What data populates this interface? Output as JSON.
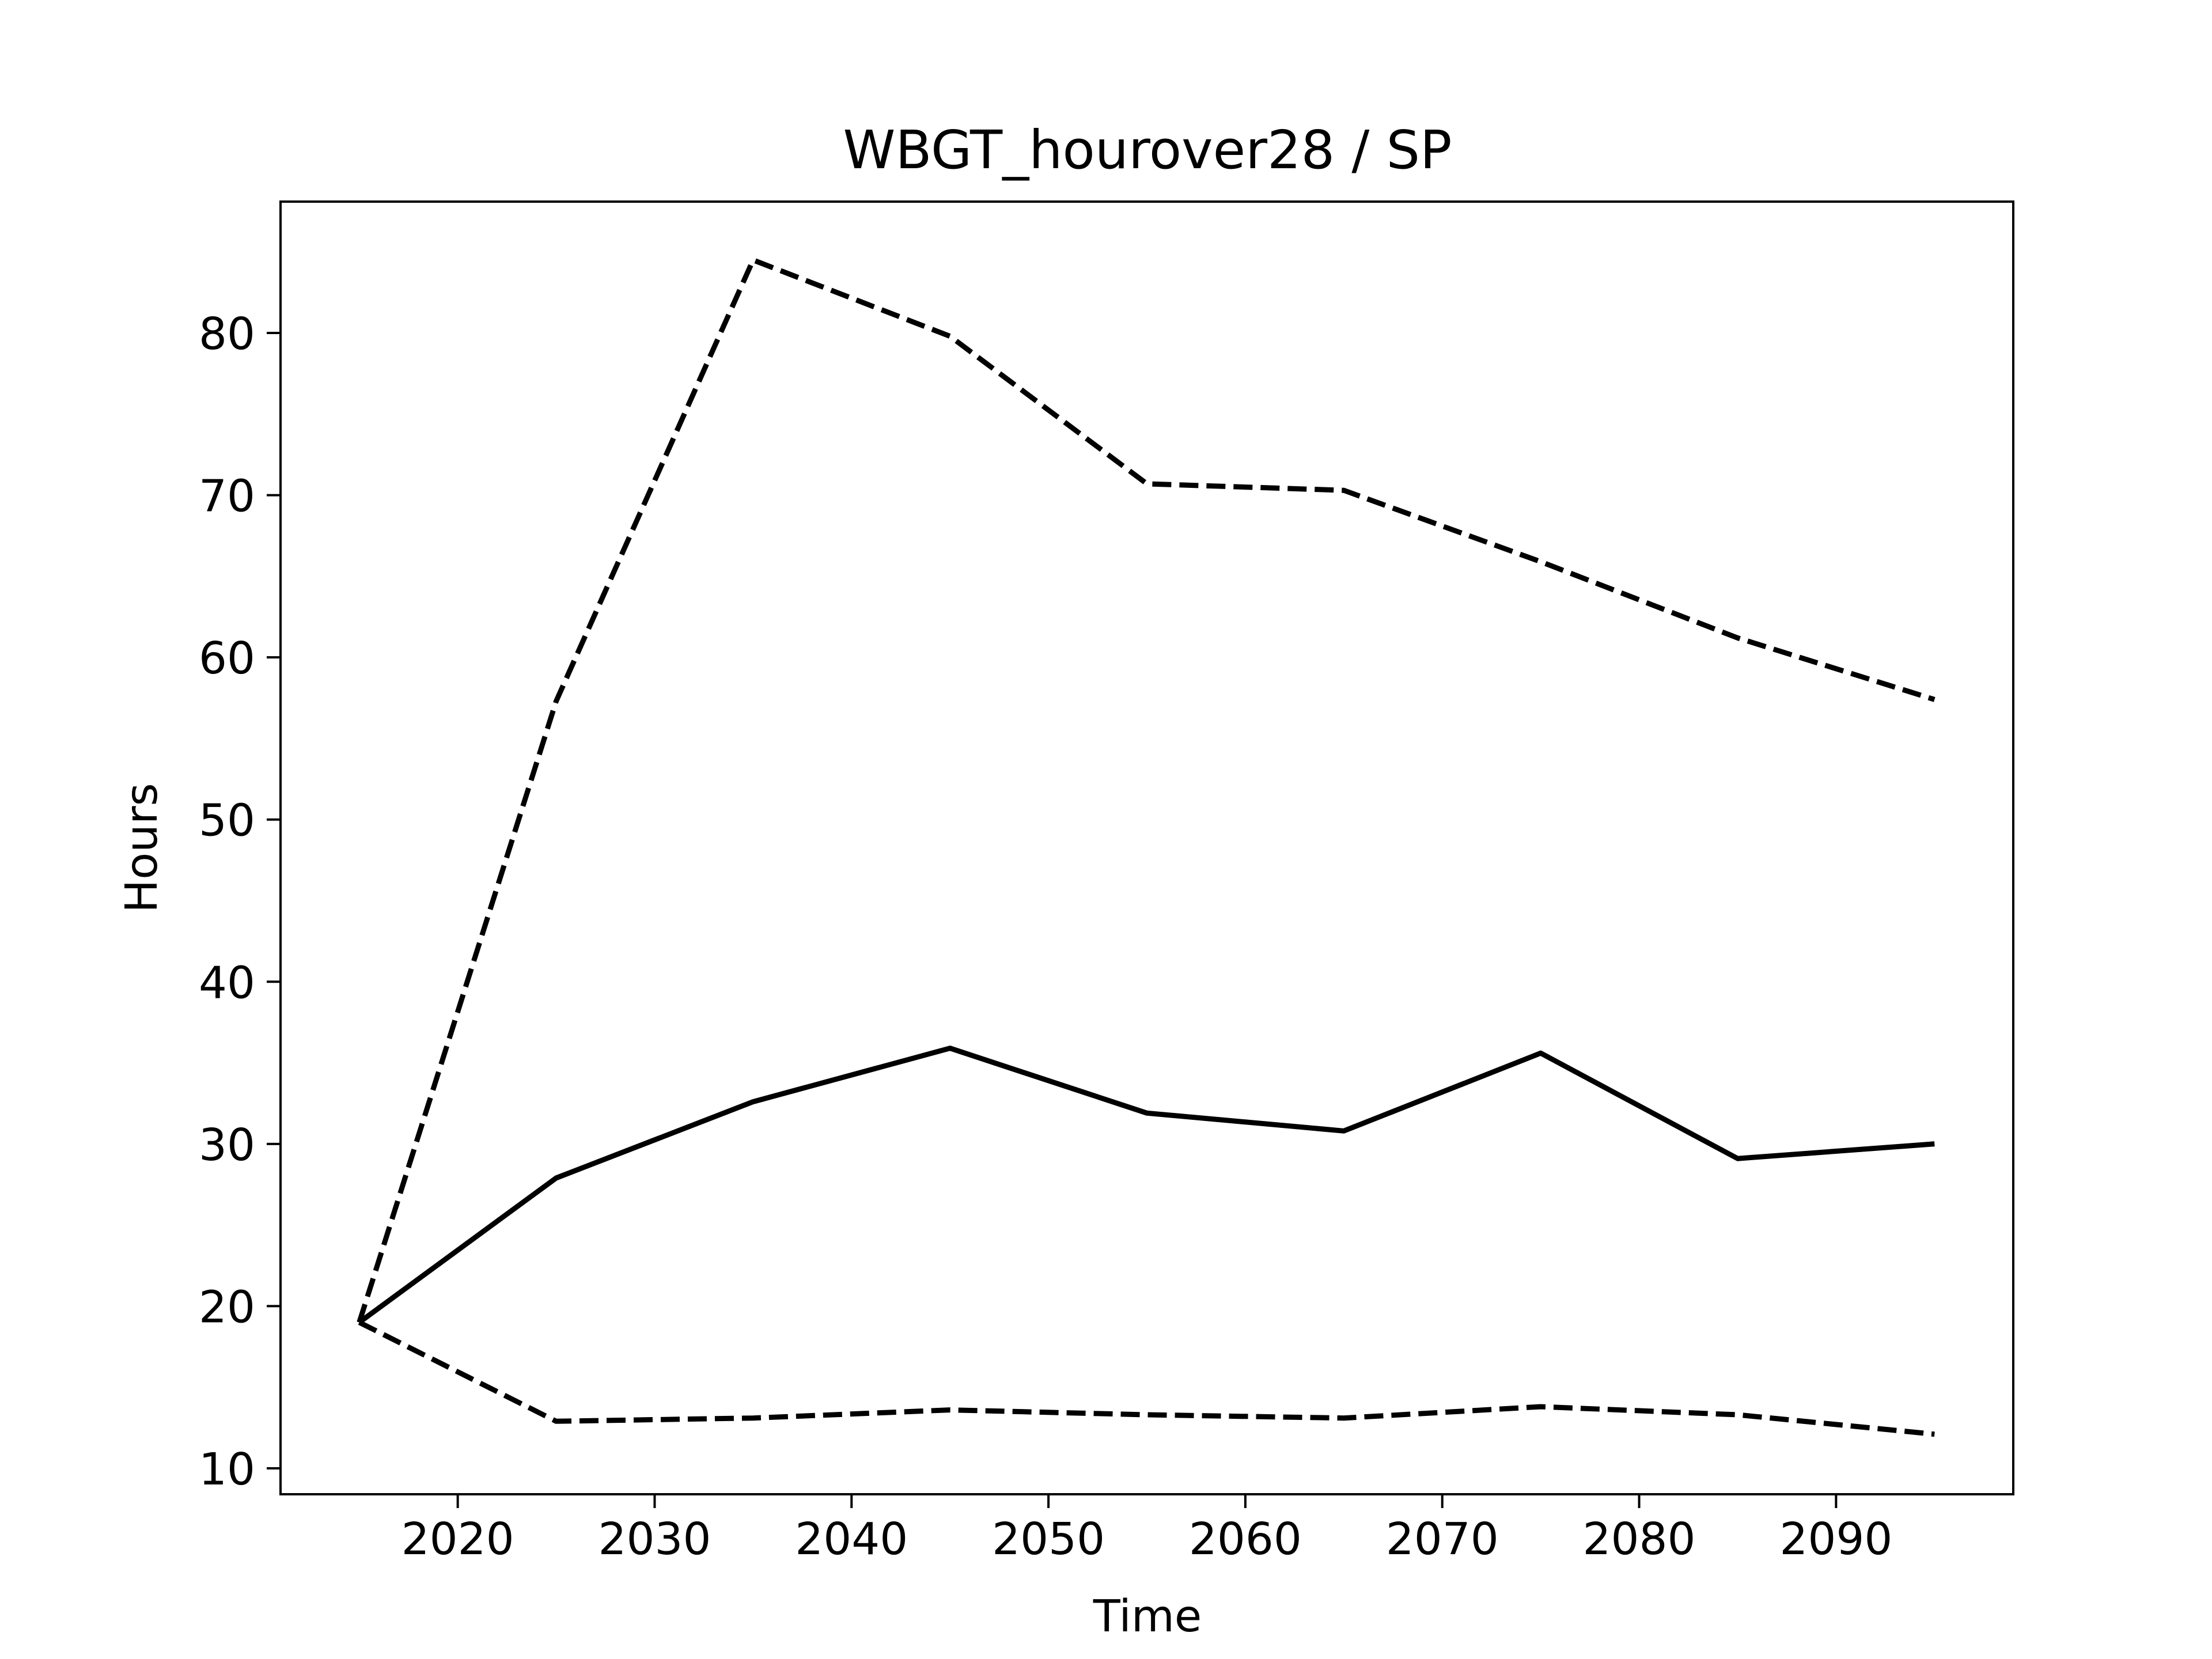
{
  "chart_data": {
    "type": "line",
    "title": "WBGT_hourover28 / SP",
    "xlabel": "Time",
    "ylabel": "Hours",
    "xlim": [
      2011,
      2099
    ],
    "ylim": [
      8.4,
      88.1
    ],
    "xticks": [
      2020,
      2030,
      2040,
      2050,
      2060,
      2070,
      2080,
      2090
    ],
    "yticks": [
      10,
      20,
      30,
      40,
      50,
      60,
      70,
      80
    ],
    "grid": false,
    "legend": "none",
    "x": [
      2015,
      2025,
      2035,
      2045,
      2055,
      2065,
      2075,
      2085,
      2095
    ],
    "series": [
      {
        "style": "dashed",
        "color": "#000000",
        "values": [
          19.0,
          57.3,
          84.5,
          79.8,
          70.7,
          70.3,
          65.9,
          61.2,
          57.4
        ]
      },
      {
        "style": "solid",
        "color": "#000000",
        "values": [
          19.0,
          27.9,
          32.6,
          35.9,
          31.9,
          30.8,
          35.6,
          29.1,
          30.0
        ]
      },
      {
        "style": "dashed",
        "color": "#000000",
        "values": [
          19.0,
          12.9,
          13.1,
          13.6,
          13.3,
          13.1,
          13.8,
          13.3,
          12.1
        ]
      }
    ]
  }
}
